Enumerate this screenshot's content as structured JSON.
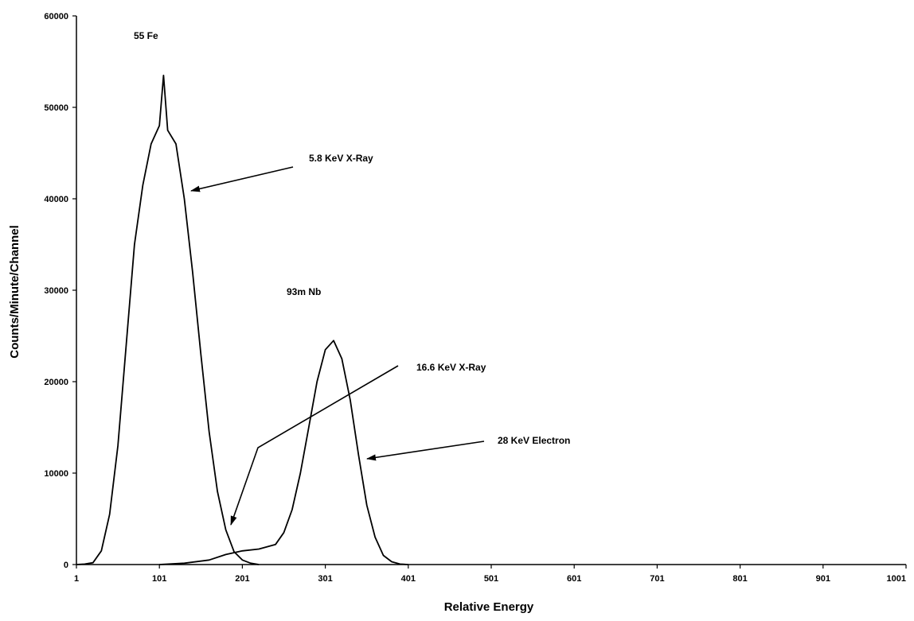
{
  "chart_data": {
    "type": "line",
    "title": "",
    "xlabel": "Relative Energy",
    "ylabel": "Counts/Minute/Channel",
    "xlim": [
      1,
      1001
    ],
    "ylim": [
      0,
      60000
    ],
    "x_ticks": [
      1,
      101,
      201,
      301,
      401,
      501,
      601,
      701,
      801,
      901,
      1001
    ],
    "y_ticks": [
      0,
      10000,
      20000,
      30000,
      40000,
      50000,
      60000
    ],
    "grid": false,
    "legend": "none",
    "series": [
      {
        "x": [
          1,
          11,
          21,
          31,
          41,
          51,
          61,
          71,
          81,
          91,
          101,
          106,
          111,
          121,
          131,
          141,
          151,
          161,
          171,
          181,
          191,
          201,
          211,
          221
        ],
        "y": [
          0,
          50,
          200,
          1500,
          5500,
          13000,
          24000,
          35000,
          41500,
          46000,
          48000,
          53500,
          47500,
          46000,
          40000,
          32000,
          23000,
          14500,
          8000,
          3800,
          1400,
          500,
          150,
          0
        ],
        "color": "#000000"
      },
      {
        "x": [
          101,
          131,
          161,
          181,
          201,
          221,
          241,
          251,
          261,
          271,
          281,
          291,
          301,
          311,
          321,
          331,
          341,
          351,
          361,
          371,
          381,
          391,
          401
        ],
        "y": [
          0,
          150,
          500,
          1100,
          1500,
          1700,
          2200,
          3500,
          6000,
          10000,
          15000,
          20000,
          23500,
          24500,
          22500,
          18000,
          12000,
          6500,
          3000,
          1000,
          300,
          50,
          0
        ],
        "color": "#000000"
      }
    ],
    "annotations": [
      {
        "text": "55 Fe"
      },
      {
        "text": "5.8 KeV X-Ray"
      },
      {
        "text": "93m Nb"
      },
      {
        "text": "16.6 KeV X-Ray"
      },
      {
        "text": "28 KeV Electron"
      }
    ]
  }
}
